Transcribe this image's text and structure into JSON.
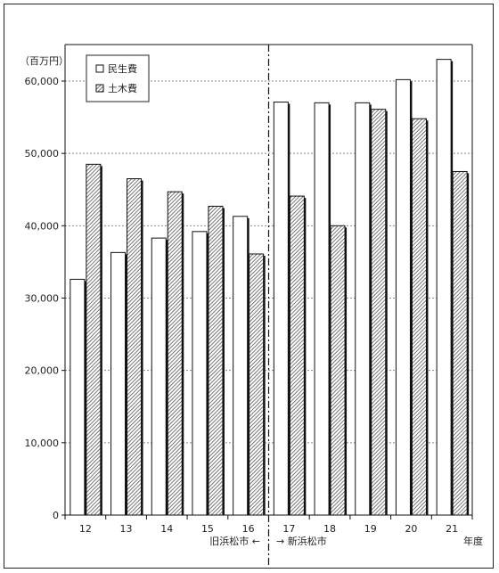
{
  "chart_data": {
    "type": "bar",
    "unit_label": "（百万円）",
    "xlabel": "年度",
    "categories": [
      "12",
      "13",
      "14",
      "15",
      "16",
      "17",
      "18",
      "19",
      "20",
      "21"
    ],
    "series": [
      {
        "name": "民生費",
        "pattern": "white",
        "values": [
          32600,
          36300,
          38300,
          39200,
          41300,
          57100,
          57000,
          57000,
          60200,
          63000
        ]
      },
      {
        "name": "土木費",
        "pattern": "hatched",
        "values": [
          48500,
          46500,
          44700,
          42700,
          36100,
          44100,
          40000,
          56100,
          54800,
          47500
        ]
      }
    ],
    "ylim": [
      0,
      65000
    ],
    "yticks": [
      "0",
      "10,000",
      "20,000",
      "30,000",
      "40,000",
      "50,000",
      "60,000"
    ],
    "grid": "horizontal dotted",
    "legend_position": "top-left",
    "divider": {
      "left_text": "旧浜松市 ←",
      "right_text": "→ 新浜松市"
    }
  },
  "colors": {
    "bar_fill": "#ffffff",
    "stroke": "#111111",
    "hatch": "#555555",
    "grid": "#888888"
  }
}
